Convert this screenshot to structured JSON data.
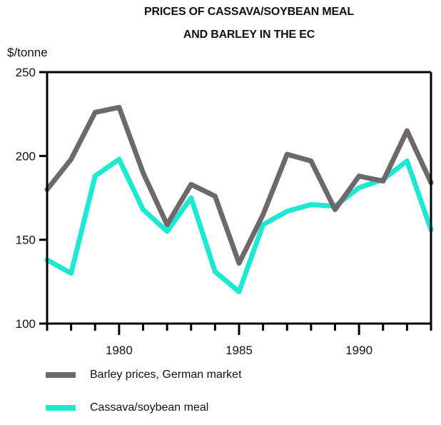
{
  "chart_data": {
    "type": "line",
    "title_lines": [
      "PRICES OF CASSAVA/SOYBEAN MEAL",
      "AND BARLEY IN THE EC"
    ],
    "ylabel": "$/tonne",
    "xlabel": "",
    "xlim": [
      1977,
      1993
    ],
    "ylim": [
      100,
      250
    ],
    "x_tick_labels": [
      {
        "value": 1980,
        "label": "1980"
      },
      {
        "value": 1985,
        "label": "1985"
      },
      {
        "value": 1990,
        "label": "1990"
      }
    ],
    "x_minor_ticks": [
      1977,
      1978,
      1979,
      1980,
      1981,
      1982,
      1983,
      1984,
      1985,
      1986,
      1987,
      1988,
      1989,
      1990,
      1991,
      1992,
      1993
    ],
    "y_ticks": [
      {
        "value": 100,
        "label": "100"
      },
      {
        "value": 150,
        "label": "150"
      },
      {
        "value": 200,
        "label": "200"
      },
      {
        "value": 250,
        "label": "250"
      }
    ],
    "grid": false,
    "legend_position": "bottom",
    "x": [
      1977,
      1978,
      1979,
      1980,
      1981,
      1982,
      1983,
      1984,
      1985,
      1986,
      1987,
      1988,
      1989,
      1990,
      1991,
      1992,
      1993
    ],
    "series": [
      {
        "name": "Barley prices, German market",
        "color": "#6e6868",
        "values": [
          180,
          198,
          226,
          229,
          190,
          159,
          183,
          176,
          136,
          165,
          201,
          197,
          168,
          188,
          185,
          215,
          184
        ]
      },
      {
        "name": "Cassava/soybean meal",
        "color": "#1fe8d2",
        "values": [
          138,
          130,
          188,
          198,
          168,
          155,
          175,
          131,
          119,
          159,
          167,
          171,
          170,
          181,
          186,
          197,
          156
        ]
      }
    ]
  }
}
